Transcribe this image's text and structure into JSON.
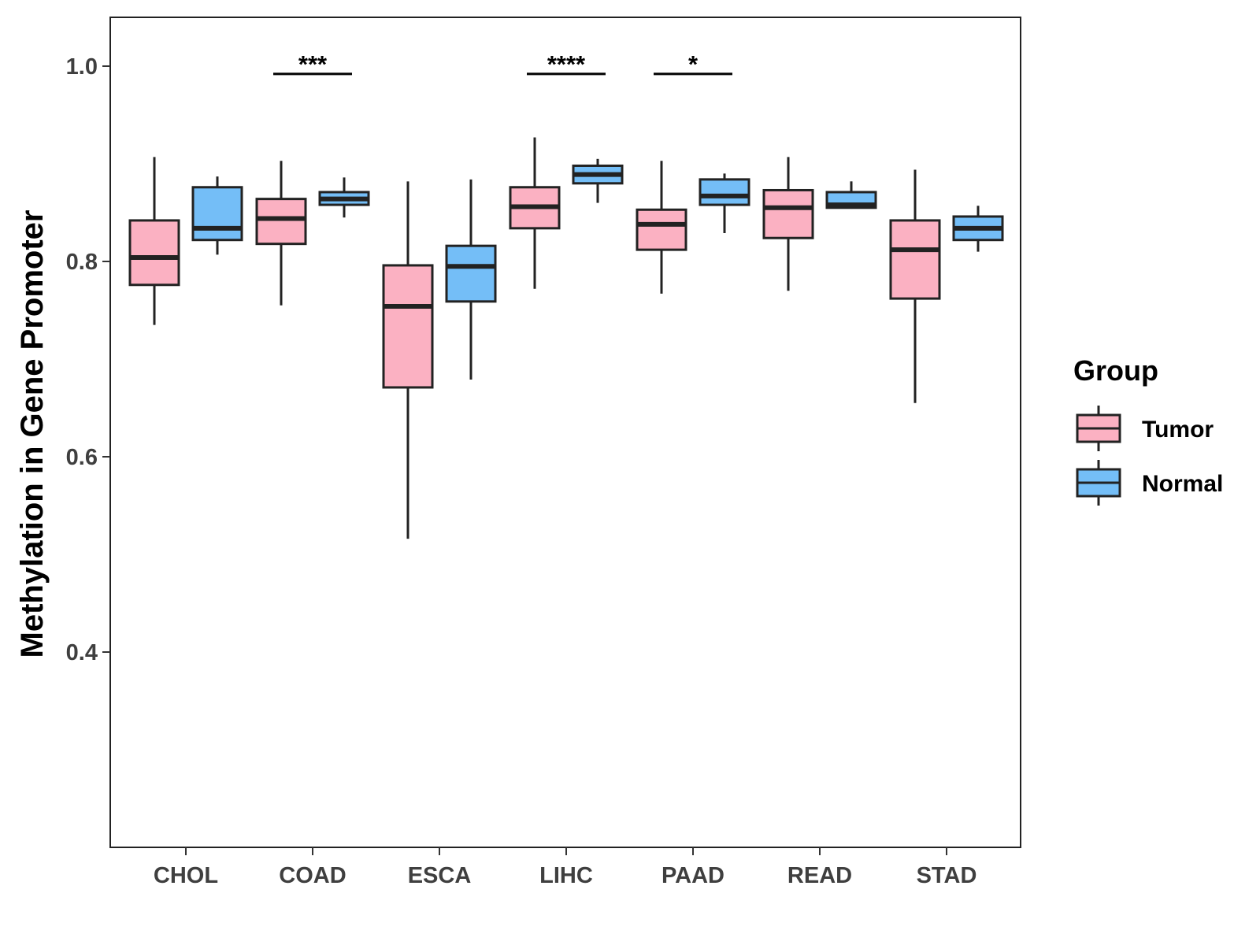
{
  "colors": {
    "tumor": "#FBB1C2",
    "normal": "#74BEF7",
    "outline": "#222222",
    "axis_text": "#3f3f3f"
  },
  "chart_data": {
    "type": "boxplot",
    "title": "",
    "xlabel": "",
    "ylabel": "Methylation in Gene Promoter",
    "ylim": [
      0.2,
      1.05
    ],
    "yticks": [
      0.4,
      0.6,
      0.8,
      1.0
    ],
    "ytick_labels": [
      "0.4",
      "0.6",
      "0.8",
      "1.0"
    ],
    "grid": false,
    "categories": [
      "CHOL",
      "COAD",
      "ESCA",
      "LIHC",
      "PAAD",
      "READ",
      "STAD"
    ],
    "legend": {
      "title": "Group",
      "placement": "right",
      "entries": [
        "Tumor",
        "Normal"
      ]
    },
    "series": [
      {
        "name": "Tumor",
        "boxes": [
          {
            "category": "CHOL",
            "min": 0.735,
            "q1": 0.776,
            "median": 0.804,
            "q3": 0.842,
            "max": 0.907
          },
          {
            "category": "COAD",
            "min": 0.755,
            "q1": 0.818,
            "median": 0.844,
            "q3": 0.864,
            "max": 0.903
          },
          {
            "category": "ESCA",
            "min": 0.516,
            "q1": 0.671,
            "median": 0.754,
            "q3": 0.796,
            "max": 0.882
          },
          {
            "category": "LIHC",
            "min": 0.772,
            "q1": 0.834,
            "median": 0.856,
            "q3": 0.876,
            "max": 0.927
          },
          {
            "category": "PAAD",
            "min": 0.767,
            "q1": 0.812,
            "median": 0.838,
            "q3": 0.853,
            "max": 0.903
          },
          {
            "category": "READ",
            "min": 0.77,
            "q1": 0.824,
            "median": 0.855,
            "q3": 0.873,
            "max": 0.907
          },
          {
            "category": "STAD",
            "min": 0.655,
            "q1": 0.762,
            "median": 0.812,
            "q3": 0.842,
            "max": 0.894
          }
        ]
      },
      {
        "name": "Normal",
        "boxes": [
          {
            "category": "CHOL",
            "min": 0.807,
            "q1": 0.822,
            "median": 0.834,
            "q3": 0.876,
            "max": 0.887
          },
          {
            "category": "COAD",
            "min": 0.845,
            "q1": 0.858,
            "median": 0.864,
            "q3": 0.871,
            "max": 0.886
          },
          {
            "category": "ESCA",
            "min": 0.679,
            "q1": 0.759,
            "median": 0.795,
            "q3": 0.816,
            "max": 0.884
          },
          {
            "category": "LIHC",
            "min": 0.86,
            "q1": 0.88,
            "median": 0.889,
            "q3": 0.898,
            "max": 0.905
          },
          {
            "category": "PAAD",
            "min": 0.829,
            "q1": 0.858,
            "median": 0.867,
            "q3": 0.884,
            "max": 0.89
          },
          {
            "category": "READ",
            "min": 0.854,
            "q1": 0.855,
            "median": 0.858,
            "q3": 0.871,
            "max": 0.882
          },
          {
            "category": "STAD",
            "min": 0.81,
            "q1": 0.822,
            "median": 0.834,
            "q3": 0.846,
            "max": 0.857
          }
        ]
      }
    ],
    "annotations": [
      {
        "category": "COAD",
        "label": "***",
        "y": 0.992
      },
      {
        "category": "LIHC",
        "label": "****",
        "y": 0.992
      },
      {
        "category": "PAAD",
        "label": "*",
        "y": 0.992
      }
    ]
  }
}
